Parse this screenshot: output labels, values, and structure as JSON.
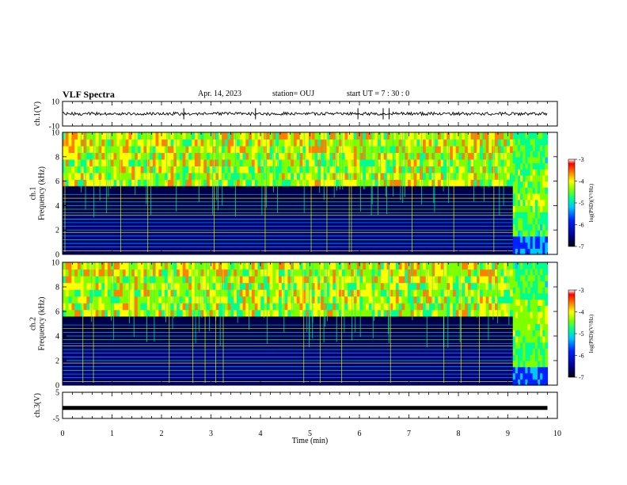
{
  "header": {
    "title": "VLF Spectra",
    "date": "Apr. 14, 2023",
    "station": "station= OUJ",
    "start_time": "start  UT =   7 : 30 : 0"
  },
  "chart_data": [
    {
      "type": "line",
      "panel": "ch1-waveform",
      "ylabel": "ch.1(V)",
      "ylim": [
        -10,
        10
      ],
      "yticks": [
        "10",
        "-10"
      ],
      "x": [
        0,
        10
      ],
      "baseline_mean": 0,
      "description_values_only": false
    },
    {
      "type": "heatmap",
      "panel": "ch1-spectrogram",
      "ylabel": "ch.1\nFrequency  (kHz)",
      "ylim": [
        0,
        10
      ],
      "yticks": [
        "0",
        "2",
        "4",
        "6",
        "8",
        "10"
      ],
      "xlim": [
        0,
        10
      ],
      "data_end_min": 9.8,
      "transition_min": 9.1,
      "noise_band_top_khz": 6,
      "colorbar": {
        "label": "log(PSD)(V²/Hz)",
        "ticks": [
          "-3",
          "-4",
          "-5",
          "-6",
          "-7"
        ],
        "range": [
          -7,
          -3
        ]
      }
    },
    {
      "type": "heatmap",
      "panel": "ch2-spectrogram",
      "ylabel": "ch.2\nFrequency  (kHz)",
      "ylim": [
        0,
        10
      ],
      "yticks": [
        "0",
        "2",
        "4",
        "6",
        "8",
        "10"
      ],
      "xlim": [
        0,
        10
      ],
      "data_end_min": 9.8,
      "transition_min": 9.1,
      "noise_band_top_khz": 6,
      "colorbar": {
        "label": "log(PSD)(V²/Hz)",
        "ticks": [
          "-3",
          "-4",
          "-5",
          "-6",
          "-7"
        ],
        "range": [
          -7,
          -3
        ]
      }
    },
    {
      "type": "line",
      "panel": "ch3-waveform",
      "ylabel": "ch.3(V)",
      "ylim": [
        -5,
        5
      ],
      "yticks": [
        "5",
        "-5"
      ],
      "x": [
        0,
        9.8
      ],
      "y": [
        -1,
        -1
      ],
      "xlabel": "Time  (min)",
      "xticks": [
        "0",
        "1",
        "2",
        "3",
        "4",
        "5",
        "6",
        "7",
        "8",
        "9",
        "10"
      ]
    }
  ],
  "colors": {
    "axis": "#000000",
    "background": "#ffffff",
    "colormap": [
      "#000000",
      "#00007a",
      "#0020ff",
      "#00c8ff",
      "#00ff90",
      "#80ff00",
      "#ffff00",
      "#ff8000",
      "#ff0000",
      "#ffffff"
    ]
  }
}
